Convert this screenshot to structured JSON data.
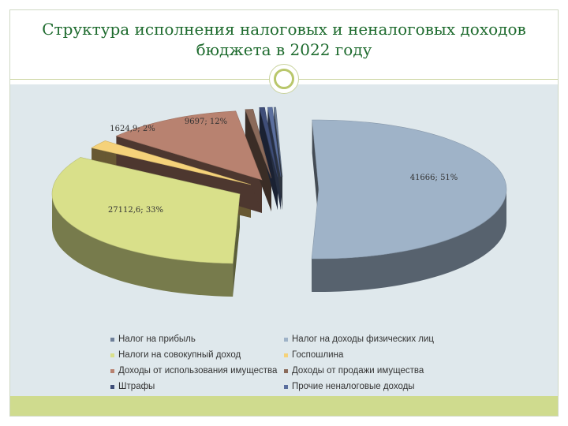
{
  "title_line1": "Структура исполнения налоговых и неналоговых доходов",
  "title_line2": "бюджета в 2022 году",
  "colors": {
    "title": "#1e6b2e",
    "background": "#dfe8ec",
    "footer": "#cfdb8e"
  },
  "chart_data": {
    "type": "pie",
    "title": "",
    "slices": [
      {
        "name": "Налог на прибыль",
        "value": null,
        "label": "",
        "color": "#6e7f99"
      },
      {
        "name": "Налог на доходы физических лиц",
        "value": 41666,
        "percent": 51,
        "label": "41666; 51%",
        "color": "#9fb3c8"
      },
      {
        "name": "Налоги на совокупный доход",
        "value": 27112.6,
        "percent": 33,
        "label": "27112,6; 33%",
        "color": "#d9e08a"
      },
      {
        "name": "Госпошлина",
        "value": 1624.9,
        "percent": 2,
        "label": "1624,9; 2%",
        "color": "#f5d27a"
      },
      {
        "name": "Доходы от использования имущества",
        "value": 9697,
        "percent": 12,
        "label": "9697; 12%",
        "color": "#b88270"
      },
      {
        "name": "Доходы от продажи имущества",
        "value": null,
        "label": "",
        "color": "#8a6a5a"
      },
      {
        "name": "Штрафы",
        "value": null,
        "label": "",
        "color": "#3f4e78"
      },
      {
        "name": "Прочие неналоговые доходы",
        "value": null,
        "label": "",
        "color": "#5b6f9e"
      }
    ],
    "legend_position": "bottom"
  }
}
